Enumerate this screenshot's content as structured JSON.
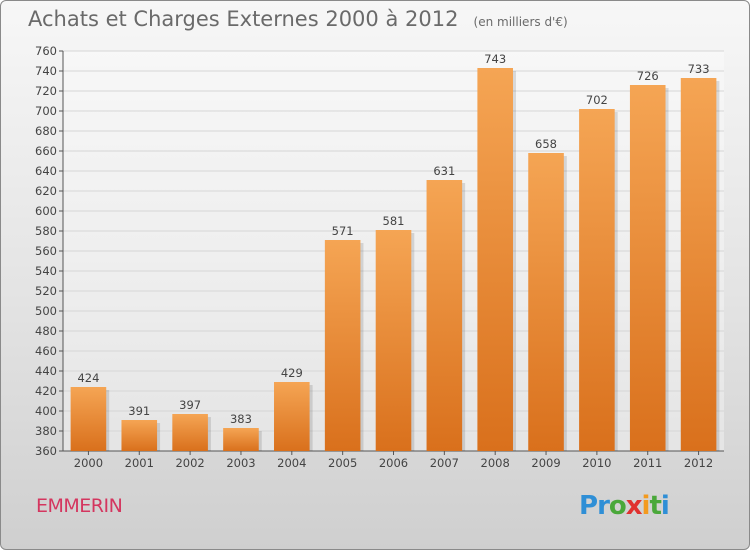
{
  "title": "Achats et Charges Externes 2000 à 2012",
  "subtitle": "(en milliers d'€)",
  "commune": "EMMERIN",
  "logo": {
    "letters": [
      "P",
      "r",
      "o",
      "x",
      "i",
      "t",
      "i"
    ],
    "colors": [
      "#2f8fd6",
      "#2f8fd6",
      "#4aa83a",
      "#e0312f",
      "#f39a1e",
      "#4aa83a",
      "#2f8fd6"
    ]
  },
  "colors": {
    "bar_top": "#f5a554",
    "bar_bottom": "#d9701c",
    "label": "#444444",
    "grid": "#d6d6d6"
  },
  "chart_data": {
    "type": "bar",
    "categories": [
      "2000",
      "2001",
      "2002",
      "2003",
      "2004",
      "2005",
      "2006",
      "2007",
      "2008",
      "2009",
      "2010",
      "2011",
      "2012"
    ],
    "values": [
      424,
      391,
      397,
      383,
      429,
      571,
      581,
      631,
      743,
      658,
      702,
      726,
      733
    ],
    "ylim": [
      360,
      760
    ],
    "yticks": [
      360,
      380,
      400,
      420,
      440,
      460,
      480,
      500,
      520,
      540,
      560,
      580,
      600,
      620,
      640,
      660,
      680,
      700,
      720,
      740,
      760
    ],
    "xlabel": "",
    "ylabel": "",
    "grid": true,
    "data_labels": true
  }
}
